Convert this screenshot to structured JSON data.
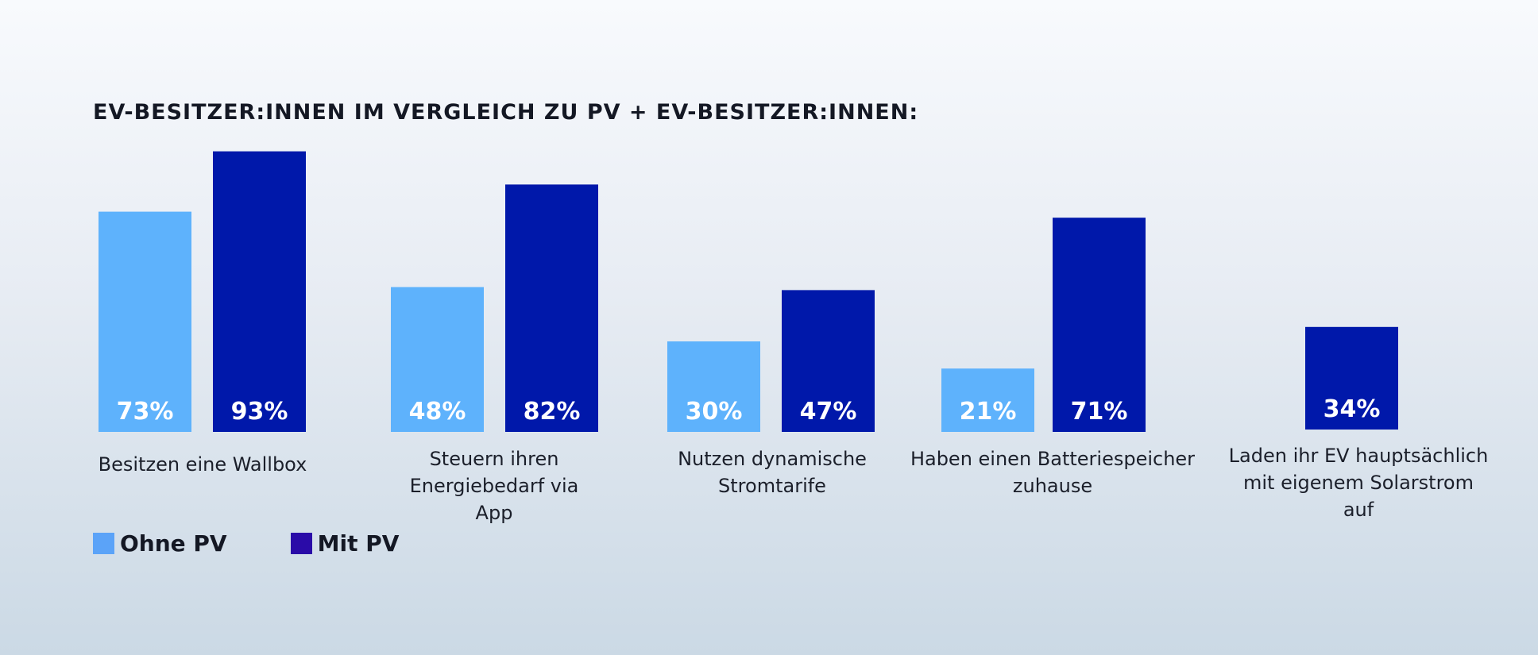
{
  "chart_data": {
    "type": "bar",
    "title": "EV-BESITZER:INNEN IM VERGLEICH ZU PV + EV-BESITZER:INNEN:",
    "xlabel": "",
    "ylabel": "",
    "ylim": [
      0,
      100
    ],
    "grid": false,
    "legend_placement": "bottom-left",
    "categories": [
      "Besitzen eine Wallbox",
      "Steuern ihren Energiebedarf via App",
      "Nutzen dynamische Stromtarife",
      "Haben einen Batteriespeicher zuhause",
      "Laden ihr EV hauptsächlich mit eigenem Solarstrom auf"
    ],
    "series": [
      {
        "name": "Ohne PV",
        "color": "#5eb2fc",
        "values": [
          73,
          48,
          30,
          21,
          null
        ],
        "labels": [
          "73%",
          "48%",
          "30%",
          "21%",
          ""
        ]
      },
      {
        "name": "Mit PV",
        "color": "#0018aa",
        "values": [
          93,
          82,
          47,
          71,
          34
        ],
        "labels": [
          "93%",
          "82%",
          "47%",
          "71%",
          "34%"
        ]
      }
    ]
  },
  "legend": [
    {
      "label": "Ohne PV",
      "color": "#5ba3f8"
    },
    {
      "label": "Mit PV",
      "color": "#2a0ba8"
    }
  ]
}
